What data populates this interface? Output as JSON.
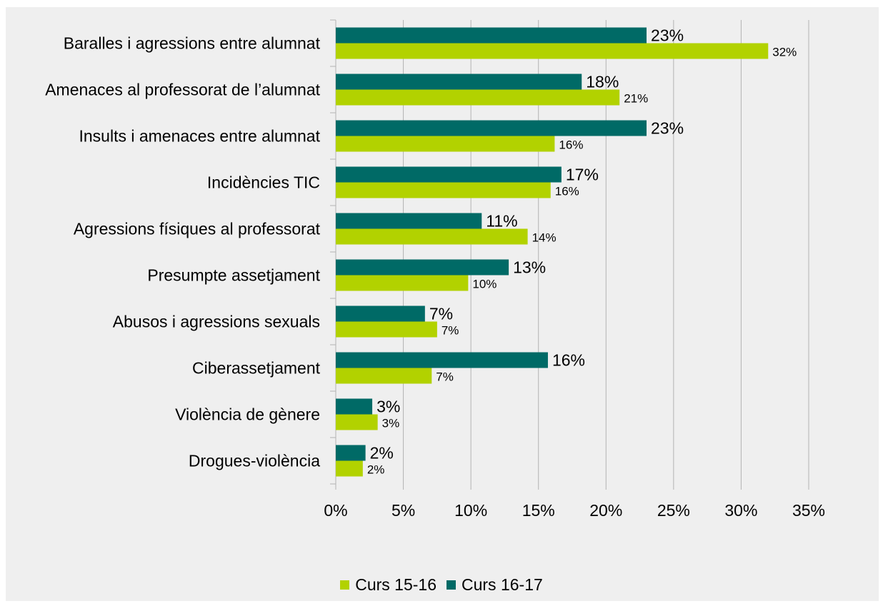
{
  "chart_data": {
    "type": "bar",
    "orientation": "horizontal",
    "categories": [
      "Baralles i agressions entre alumnat",
      "Amenaces al professorat de l’alumnat",
      "Insults i amenaces entre alumnat",
      "Incidències TIC",
      "Agressions físiques al professorat",
      "Presumpte assetjament",
      "Abusos i agressions sexuals",
      "Ciberassetjament",
      "Violència de gènere",
      "Drogues-violència"
    ],
    "series": [
      {
        "name": "Curs 16-17",
        "color": "#006a66",
        "values": [
          23,
          18.2,
          23,
          16.7,
          10.8,
          12.8,
          6.6,
          15.7,
          2.7,
          2.2
        ],
        "labels": [
          "23%",
          "18%",
          "23%",
          "17%",
          "11%",
          "13%",
          "7%",
          "16%",
          "3%",
          "2%"
        ]
      },
      {
        "name": "Curs 15-16",
        "color": "#b2d200",
        "values": [
          32,
          21,
          16.2,
          15.9,
          14.2,
          9.8,
          7.5,
          7.1,
          3.1,
          2
        ],
        "labels": [
          "32%",
          "21%",
          "16%",
          "16%",
          "14%",
          "10%",
          "7%",
          "7%",
          "3%",
          "2%"
        ]
      }
    ],
    "xlim": [
      0,
      35
    ],
    "xticks": [
      0,
      5,
      10,
      15,
      20,
      25,
      30,
      35
    ],
    "xtick_labels": [
      "0%",
      "5%",
      "10%",
      "15%",
      "20%",
      "25%",
      "30%",
      "35%"
    ],
    "grid": true,
    "legend": {
      "position": "bottom",
      "items": [
        "Curs 15-16",
        "Curs 16-17"
      ]
    }
  }
}
